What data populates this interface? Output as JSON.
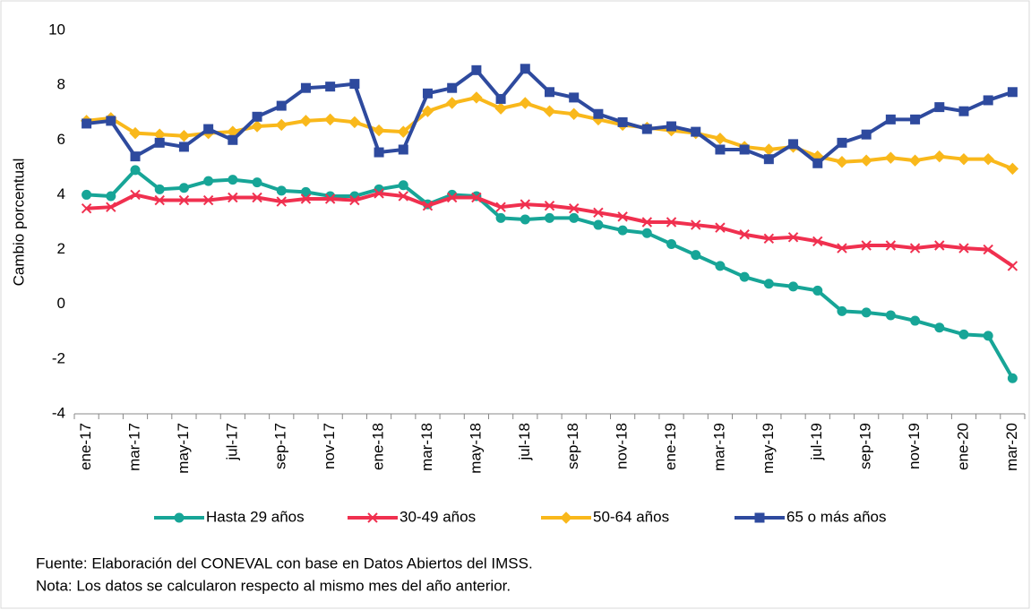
{
  "chart_data": {
    "type": "line",
    "ylabel": "Cambio porcentual",
    "categories": [
      "ene-17",
      null,
      "mar-17",
      null,
      "may-17",
      null,
      "jul-17",
      null,
      "sep-17",
      null,
      "nov-17",
      null,
      "ene-18",
      null,
      "mar-18",
      null,
      "may-18",
      null,
      "jul-18",
      null,
      "sep-18",
      null,
      "nov-18",
      null,
      "ene-19",
      null,
      "mar-19",
      null,
      "may-19",
      null,
      "jul-19",
      null,
      "sep-19",
      null,
      "nov-19",
      null,
      "ene-20",
      null,
      "mar-20"
    ],
    "series": [
      {
        "name": "Hasta 29 años",
        "color": "#17a597",
        "marker": "circle",
        "values": [
          4.0,
          3.95,
          4.9,
          4.2,
          4.25,
          4.5,
          4.55,
          4.45,
          4.15,
          4.1,
          3.95,
          3.95,
          4.2,
          4.35,
          3.65,
          4.0,
          3.95,
          3.15,
          3.1,
          3.15,
          3.15,
          2.9,
          2.7,
          2.6,
          2.2,
          1.8,
          1.4,
          1.0,
          0.75,
          0.65,
          0.5,
          -0.25,
          -0.3,
          -0.4,
          -0.6,
          -0.85,
          -1.1,
          -1.15,
          -2.7
        ]
      },
      {
        "name": "30-49 años",
        "color": "#f0304f",
        "marker": "x",
        "values": [
          3.5,
          3.55,
          4.0,
          3.8,
          3.8,
          3.8,
          3.9,
          3.9,
          3.75,
          3.85,
          3.85,
          3.8,
          4.05,
          3.95,
          3.6,
          3.9,
          3.9,
          3.55,
          3.65,
          3.6,
          3.5,
          3.35,
          3.2,
          3.0,
          3.0,
          2.9,
          2.8,
          2.55,
          2.4,
          2.45,
          2.3,
          2.05,
          2.15,
          2.15,
          2.05,
          2.15,
          2.05,
          2.0,
          1.4
        ]
      },
      {
        "name": "50-64 años",
        "color": "#f9b81b",
        "marker": "diamond",
        "values": [
          6.7,
          6.8,
          6.25,
          6.2,
          6.15,
          6.25,
          6.3,
          6.5,
          6.55,
          6.7,
          6.75,
          6.65,
          6.35,
          6.3,
          7.05,
          7.35,
          7.55,
          7.15,
          7.35,
          7.05,
          6.95,
          6.75,
          6.55,
          6.45,
          6.35,
          6.25,
          6.05,
          5.75,
          5.65,
          5.75,
          5.4,
          5.2,
          5.25,
          5.35,
          5.25,
          5.4,
          5.3,
          5.3,
          4.95
        ]
      },
      {
        "name": "65 o más años",
        "color": "#2e4a9e",
        "marker": "square",
        "values": [
          6.6,
          6.7,
          5.4,
          5.9,
          5.75,
          6.4,
          6.0,
          6.85,
          7.25,
          7.9,
          7.95,
          8.05,
          5.55,
          5.65,
          7.7,
          7.9,
          8.55,
          7.5,
          8.6,
          7.75,
          7.55,
          6.95,
          6.65,
          6.4,
          6.5,
          6.3,
          5.65,
          5.65,
          5.3,
          5.85,
          5.15,
          5.9,
          6.2,
          6.75,
          6.75,
          7.2,
          7.05,
          7.45,
          7.75
        ]
      }
    ],
    "ylim": [
      -4,
      10
    ],
    "yticks": [
      -4,
      -2,
      0,
      2,
      4,
      6,
      8,
      10
    ],
    "grid": false,
    "legend": "bottom",
    "notes": [
      "Fuente: Elaboración del CONEVAL con base en Datos Abiertos del IMSS.",
      "Nota: Los datos se calcularon respecto al mismo mes del año anterior."
    ]
  }
}
